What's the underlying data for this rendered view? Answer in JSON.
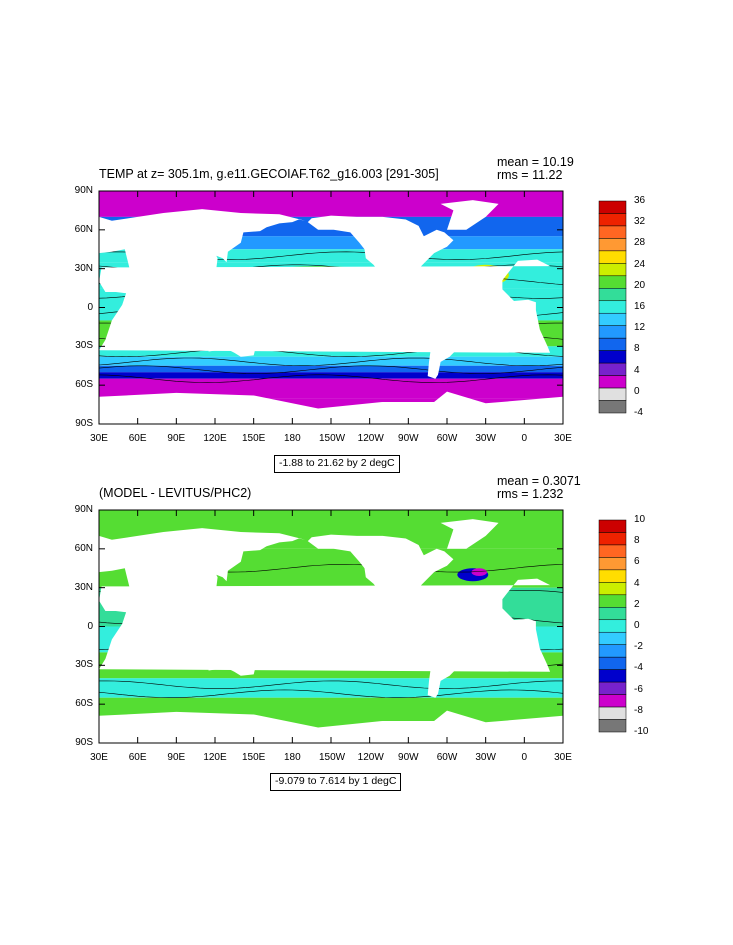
{
  "panels": [
    {
      "title": "TEMP at z= 305.1m, g.e11.GECOIAF.T62_g16.003 [291-305]",
      "mean_text": "mean = 10.19",
      "rms_text": "rms = 11.22",
      "contour_info": "-1.88 to 21.62 by 2 degC",
      "colorbar_labels": [
        "36",
        "32",
        "28",
        "24",
        "20",
        "16",
        "12",
        "8",
        "4",
        "0",
        "-4"
      ],
      "colorbar_colors": [
        "#cc0000",
        "#ee2200",
        "#ff6622",
        "#ff9933",
        "#ffdd00",
        "#ccee00",
        "#55dd33",
        "#33dd99",
        "#33eedd",
        "#33ccff",
        "#2299ff",
        "#1166ee",
        "#0000cc",
        "#7722cc",
        "#cc00cc",
        "#e0e0e0",
        "#777777"
      ]
    },
    {
      "title": "(MODEL - LEVITUS/PHC2)",
      "mean_text": "mean = 0.3071",
      "rms_text": "rms = 1.232",
      "contour_info": "-9.079 to 7.614 by 1 degC",
      "colorbar_labels": [
        "10",
        "8",
        "6",
        "4",
        "2",
        "0",
        "-2",
        "-4",
        "-6",
        "-8",
        "-10"
      ],
      "colorbar_colors": [
        "#cc0000",
        "#ee2200",
        "#ff6622",
        "#ff9933",
        "#ffdd00",
        "#ccee00",
        "#55dd33",
        "#33dd99",
        "#33eedd",
        "#33ccff",
        "#2299ff",
        "#1166ee",
        "#0000cc",
        "#7722cc",
        "#cc00cc",
        "#e0e0e0",
        "#777777"
      ]
    }
  ],
  "lat_labels": [
    "90N",
    "60N",
    "30N",
    "0",
    "30S",
    "60S",
    "90S"
  ],
  "lon_labels": [
    "30E",
    "60E",
    "90E",
    "120E",
    "150E",
    "180",
    "150W",
    "120W",
    "90W",
    "60W",
    "30W",
    "0",
    "30E"
  ],
  "colors": {
    "ocean_cool": "#33eedd",
    "land": "#ffffff",
    "frame": "#000000"
  }
}
